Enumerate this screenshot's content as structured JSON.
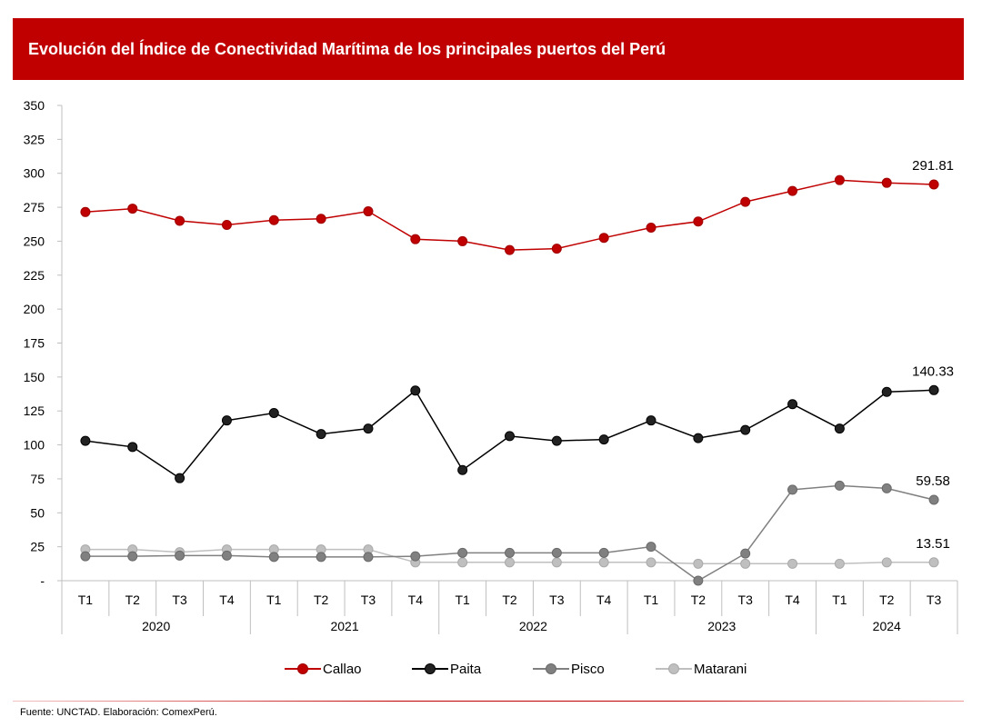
{
  "header": {
    "title": "Evolución del Índice de Conectividad Marítima de los principales puertos del Perú"
  },
  "footer": {
    "source": "Fuente: UNCTAD. Elaboración: ComexPerú."
  },
  "colors": {
    "title_bar": "#c00000",
    "callao": "#c00000",
    "paita": "#000000",
    "pisco": "#808080",
    "matarani": "#bfbfbf"
  },
  "chart_data": {
    "type": "line",
    "title": "Evolución del Índice de Conectividad Marítima de los principales puertos del Perú",
    "xlabel": "",
    "ylabel": "",
    "ylim": [
      0,
      350
    ],
    "y_ticks": [
      "-",
      "25",
      "50",
      "75",
      "100",
      "125",
      "150",
      "175",
      "200",
      "225",
      "250",
      "275",
      "300",
      "325",
      "350"
    ],
    "categories": [
      "T1",
      "T2",
      "T3",
      "T4",
      "T1",
      "T2",
      "T3",
      "T4",
      "T1",
      "T2",
      "T3",
      "T4",
      "T1",
      "T2",
      "T3",
      "T4",
      "T1",
      "T2",
      "T3"
    ],
    "year_groups": [
      {
        "label": "2020",
        "count": 4
      },
      {
        "label": "2021",
        "count": 4
      },
      {
        "label": "2022",
        "count": 4
      },
      {
        "label": "2023",
        "count": 4
      },
      {
        "label": "2024",
        "count": 3
      }
    ],
    "grid": false,
    "legend_position": "bottom",
    "series": [
      {
        "name": "Callao",
        "color": "#c00000",
        "end_label": "291.81",
        "values": [
          271.5,
          274,
          265,
          262,
          265.5,
          266.5,
          272,
          251.5,
          250,
          243.5,
          244.5,
          252.5,
          260,
          264.5,
          279,
          287,
          295,
          293,
          291.81
        ]
      },
      {
        "name": "Paita",
        "color": "#000000",
        "end_label": "140.33",
        "values": [
          103,
          98.5,
          75.5,
          118,
          123.5,
          108,
          112,
          140,
          81.5,
          106.5,
          103,
          104,
          118,
          105,
          111,
          130,
          112,
          139,
          140.33
        ]
      },
      {
        "name": "Pisco",
        "color": "#808080",
        "end_label": "59.58",
        "values": [
          18,
          18,
          18.5,
          18.5,
          17.5,
          17.5,
          17.5,
          18,
          20.5,
          20.5,
          20.5,
          20.5,
          25,
          0,
          20,
          67,
          70,
          68,
          59.58
        ]
      },
      {
        "name": "Matarani",
        "color": "#bfbfbf",
        "end_label": "13.51",
        "values": [
          23,
          23,
          21,
          23,
          23,
          23,
          23,
          13.5,
          13.5,
          13.5,
          13.5,
          13.5,
          13.5,
          12.5,
          12.5,
          12.5,
          12.5,
          13.5,
          13.51
        ]
      }
    ]
  }
}
